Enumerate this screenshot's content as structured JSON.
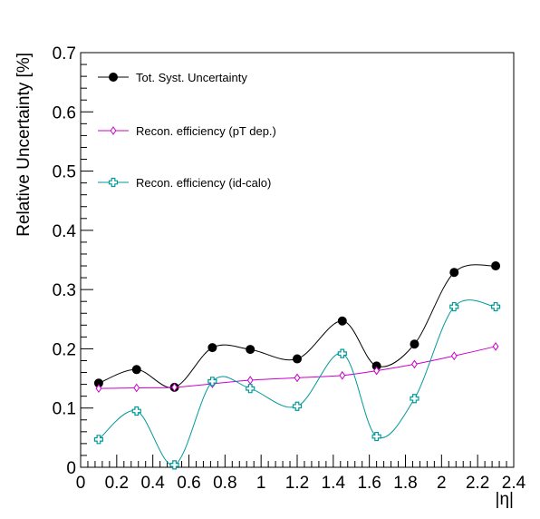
{
  "chart_data": {
    "type": "line",
    "xlabel": "|η|",
    "ylabel": "Relative Uncertainty [%]",
    "xlim": [
      0,
      2.4
    ],
    "ylim": [
      0,
      0.7
    ],
    "x_ticks": [
      "0",
      "0.2",
      "0.4",
      "0.6",
      "0.8",
      "1",
      "1.2",
      "1.4",
      "1.6",
      "1.8",
      "2",
      "2.2",
      "2.4"
    ],
    "y_ticks": [
      "0",
      "0.1",
      "0.2",
      "0.3",
      "0.4",
      "0.5",
      "0.6",
      "0.7"
    ],
    "legend_position": "top-left",
    "grid": false,
    "series": [
      {
        "name": "Tot. Syst. Uncertainty",
        "color": "#000000",
        "marker": "filled-circle",
        "x": [
          0.1,
          0.31,
          0.52,
          0.73,
          0.94,
          1.2,
          1.45,
          1.64,
          1.85,
          2.07,
          2.3
        ],
        "y": [
          0.142,
          0.165,
          0.135,
          0.202,
          0.199,
          0.183,
          0.247,
          0.171,
          0.208,
          0.329,
          0.34
        ]
      },
      {
        "name": "Recon. efficiency (pT dep.)",
        "color": "#cc00cc",
        "marker": "open-diamond",
        "x": [
          0.1,
          0.31,
          0.52,
          0.73,
          0.94,
          1.2,
          1.45,
          1.64,
          1.85,
          2.07,
          2.3
        ],
        "y": [
          0.133,
          0.134,
          0.135,
          0.141,
          0.147,
          0.151,
          0.155,
          0.163,
          0.174,
          0.188,
          0.204
        ]
      },
      {
        "name": "Recon. efficiency (id-calo)",
        "color": "#009999",
        "marker": "open-cross",
        "x": [
          0.1,
          0.31,
          0.52,
          0.73,
          0.94,
          1.2,
          1.45,
          1.64,
          1.85,
          2.07,
          2.3
        ],
        "y": [
          0.047,
          0.095,
          0.004,
          0.145,
          0.133,
          0.103,
          0.192,
          0.052,
          0.116,
          0.271,
          0.271
        ]
      }
    ]
  }
}
